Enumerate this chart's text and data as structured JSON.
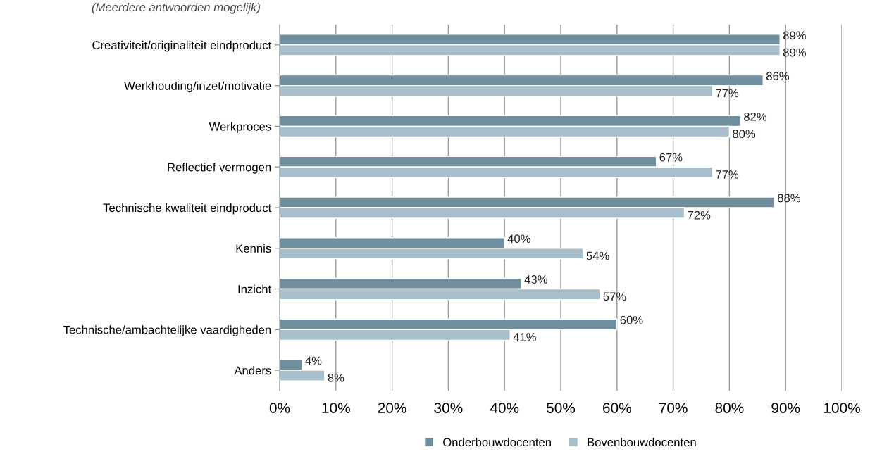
{
  "chart_data": {
    "type": "bar",
    "orientation": "horizontal",
    "subtitle": "(Meerdere antwoorden mogelijk)",
    "categories": [
      "Creativiteit/originaliteit eindproduct",
      "Werkhouding/inzet/motivatie",
      "Werkproces",
      "Reflectief vermogen",
      "Technische kwaliteit eindproduct",
      "Kennis",
      "Inzicht",
      "Technische/ambachtelijke vaardigheden",
      "Anders"
    ],
    "series": [
      {
        "name": "Onderbouwdocenten",
        "color": "#6f8e9e",
        "values": [
          89,
          86,
          82,
          67,
          88,
          40,
          43,
          60,
          4
        ],
        "value_labels": [
          "89%",
          "86%",
          "82%",
          "67%",
          "88%",
          "40%",
          "43%",
          "60%",
          "4%"
        ]
      },
      {
        "name": "Bovenbouwdocenten",
        "color": "#a8bfcb",
        "values": [
          89,
          77,
          80,
          77,
          72,
          54,
          57,
          41,
          8
        ],
        "value_labels": [
          "89%",
          "77%",
          "80%",
          "77%",
          "72%",
          "54%",
          "57%",
          "41%",
          "8%"
        ]
      }
    ],
    "xlim": [
      0,
      100
    ],
    "xticks": [
      {
        "value": 0,
        "label": "0%"
      },
      {
        "value": 10,
        "label": "10%"
      },
      {
        "value": 20,
        "label": "20%"
      },
      {
        "value": 30,
        "label": "30%"
      },
      {
        "value": 40,
        "label": "40%"
      },
      {
        "value": 50,
        "label": "50%"
      },
      {
        "value": 60,
        "label": "60%"
      },
      {
        "value": 70,
        "label": "70%"
      },
      {
        "value": 80,
        "label": "80%"
      },
      {
        "value": 90,
        "label": "90%"
      },
      {
        "value": 100,
        "label": "100%"
      }
    ],
    "grid": "x",
    "legend": "bottom"
  }
}
